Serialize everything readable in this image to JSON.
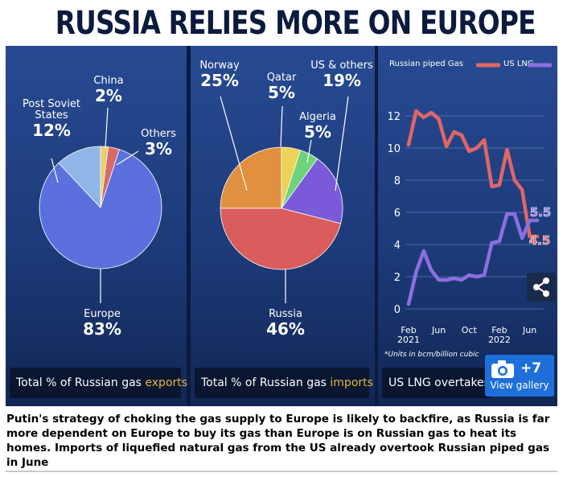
{
  "headline": "RUSSIA RELIES MORE ON EUROPE",
  "chart_data": [
    {
      "type": "pie",
      "title": "Total % of Russian gas exports",
      "title_prefix": "Total % of Russian gas ",
      "title_highlight": "exports",
      "slices": [
        {
          "label": "Europe",
          "value": 83,
          "color": "#5b70de"
        },
        {
          "label": "Post Soviet States",
          "value": 12,
          "color": "#8fb6e6"
        },
        {
          "label": "China",
          "value": 2,
          "color": "#e7cf6c"
        },
        {
          "label": "Others",
          "value": 3,
          "color": "#d86a6a"
        }
      ],
      "labels": [
        {
          "name": "Europe",
          "pct": "83%"
        },
        {
          "name": "Post Soviet\nStates",
          "pct": "12%"
        },
        {
          "name": "China",
          "pct": "2%"
        },
        {
          "name": "Others",
          "pct": "3%"
        }
      ]
    },
    {
      "type": "pie",
      "title": "Total % of Russian gas imports",
      "title_prefix": "Total % of Russian gas ",
      "title_highlight": "imports",
      "slices": [
        {
          "label": "Russia",
          "value": 46,
          "color": "#da5c5c"
        },
        {
          "label": "Norway",
          "value": 25,
          "color": "#e0903f"
        },
        {
          "label": "Qatar",
          "value": 5,
          "color": "#ecd257"
        },
        {
          "label": "Algeria",
          "value": 5,
          "color": "#6fd37c"
        },
        {
          "label": "US & others",
          "value": 19,
          "color": "#7a5ad8"
        }
      ],
      "labels": [
        {
          "name": "Russia",
          "pct": "46%"
        },
        {
          "name": "Norway",
          "pct": "25%"
        },
        {
          "name": "Qatar",
          "pct": "5%"
        },
        {
          "name": "Algeria",
          "pct": "5%"
        },
        {
          "name": "US & others",
          "pct": "19%"
        }
      ]
    },
    {
      "type": "line",
      "title": "US LNG overtakes",
      "x": [
        0,
        1,
        2,
        3,
        4,
        5,
        6,
        7,
        8,
        9,
        10,
        11,
        12,
        13,
        14,
        15,
        16,
        17
      ],
      "x_ticks": [
        {
          "at": 0,
          "label": "Feb\n2021"
        },
        {
          "at": 4,
          "label": "Jun"
        },
        {
          "at": 8,
          "label": "Oct"
        },
        {
          "at": 12,
          "label": "Feb\n2022"
        },
        {
          "at": 16,
          "label": "Jun"
        }
      ],
      "ylim": [
        0,
        13
      ],
      "y_ticks": [
        0,
        2,
        4,
        6,
        8,
        10,
        12
      ],
      "series": [
        {
          "name": "Russian piped Gas",
          "color": "#e06666",
          "values": [
            10.2,
            12.3,
            11.9,
            12.2,
            11.8,
            10.1,
            11.0,
            10.8,
            9.8,
            10.0,
            10.5,
            7.6,
            7.7,
            9.9,
            8.0,
            7.4,
            4.5,
            4.5
          ]
        },
        {
          "name": "US LNG",
          "color": "#8b6fe0",
          "values": [
            0.3,
            2.3,
            3.6,
            2.4,
            1.8,
            1.8,
            1.9,
            1.8,
            2.1,
            2.0,
            2.1,
            4.1,
            4.2,
            5.9,
            5.9,
            4.4,
            5.5,
            5.5
          ]
        }
      ],
      "end_labels": {
        "piped": "4.5",
        "lng": "5.5"
      },
      "note": "*Units in bcm/billion cubic"
    }
  ],
  "gallery": {
    "count": "+7",
    "label": "View gallery"
  },
  "caption": "Putin's strategy of choking the gas supply to Europe is likely to backfire, as Russia is far more dependent on Europe to buy its gas than Europe is on Russian gas to heat its homes. Imports of liquefied natural gas from the US already overtook Russian piped gas in June"
}
